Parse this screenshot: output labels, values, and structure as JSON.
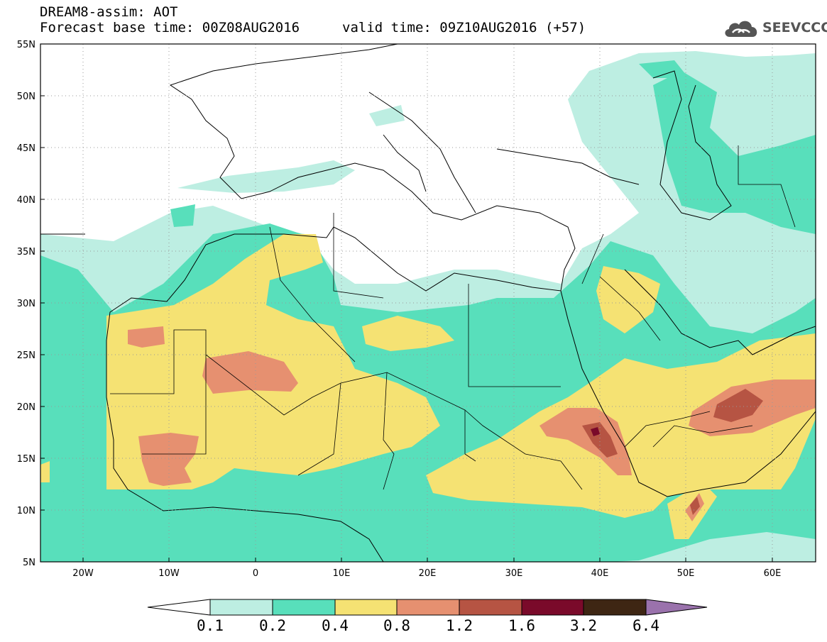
{
  "header": {
    "title_line1": "DREAM8-assim: AOT",
    "title_line2": "Forecast base time: 00Z08AUG2016",
    "valid_time": "valid time: 09Z10AUG2016 (+57)"
  },
  "logo": {
    "text": "SEEVCCC",
    "icon": "cloud-icon"
  },
  "map": {
    "lon_range": [
      -25,
      65
    ],
    "lat_range": [
      5,
      55
    ],
    "lat_ticks": [
      "55N",
      "50N",
      "45N",
      "40N",
      "35N",
      "30N",
      "25N",
      "20N",
      "15N",
      "10N",
      "5N"
    ],
    "lon_ticks": [
      "20W",
      "10W",
      "0",
      "10E",
      "20E",
      "30E",
      "40E",
      "50E",
      "60E"
    ],
    "grid": true
  },
  "legend": {
    "labels": [
      "0.1",
      "0.2",
      "0.4",
      "0.8",
      "1.2",
      "1.6",
      "3.2",
      "6.4"
    ],
    "colors": {
      "below": "#ffffff",
      "b1": "#bdeee2",
      "b2": "#58dfbb",
      "b3": "#f5e273",
      "b4": "#e69070",
      "b5": "#b65443",
      "b6": "#7a0a2a",
      "b7": "#3e2613",
      "above": "#9a72ac"
    }
  }
}
